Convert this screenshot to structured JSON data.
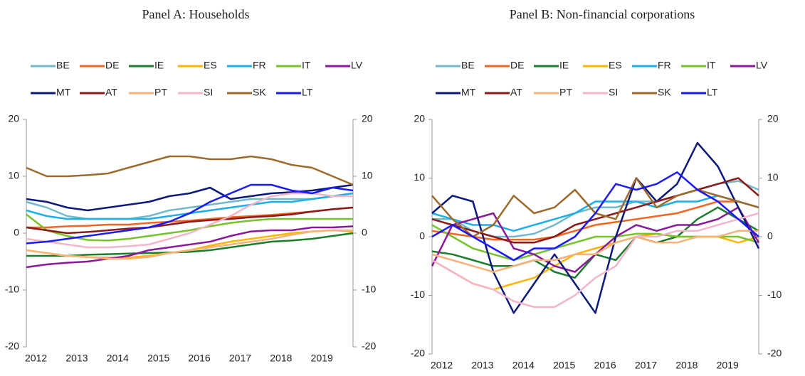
{
  "chart_data": [
    {
      "type": "line",
      "title": "Panel A: Households",
      "x": [
        2012,
        2012.5,
        2013,
        2013.5,
        2014,
        2014.5,
        2015,
        2015.5,
        2016,
        2016.5,
        2017,
        2017.5,
        2018,
        2018.5,
        2019,
        2019.5,
        2020
      ],
      "xlim": [
        2012,
        2020
      ],
      "xticks": [
        2012,
        2013,
        2014,
        2015,
        2016,
        2017,
        2018,
        2019
      ],
      "ylim": [
        -20,
        20
      ],
      "yticks": [
        -20,
        -10,
        0,
        10,
        20
      ],
      "y2lim": [
        -20,
        20
      ],
      "y2ticks": [
        -20,
        -10,
        0,
        10,
        20
      ],
      "series": [
        {
          "name": "BE",
          "color": "#72b9c9",
          "values": [
            5.5,
            4.5,
            3,
            2.5,
            2.5,
            2.5,
            3,
            4,
            4.5,
            5,
            5.5,
            6,
            6,
            6,
            6,
            6.5,
            7
          ]
        },
        {
          "name": "DE",
          "color": "#f26522",
          "values": [
            1,
            1,
            1.2,
            1.3,
            1.5,
            1.5,
            1.8,
            2,
            2.2,
            2.5,
            2.8,
            3,
            3.2,
            3.5,
            3.8,
            4.2,
            4.5
          ]
        },
        {
          "name": "IE",
          "color": "#1b7d2b",
          "values": [
            -4,
            -4,
            -4,
            -3.8,
            -3.7,
            -3.6,
            -3.5,
            -3.4,
            -3.3,
            -3,
            -2.5,
            -2,
            -1.5,
            -1.3,
            -1,
            -0.5,
            0
          ]
        },
        {
          "name": "ES",
          "color": "#ffb600",
          "values": [
            -3,
            -3.5,
            -4,
            -4.2,
            -4.3,
            -4.3,
            -4,
            -3.5,
            -3,
            -2.2,
            -1.5,
            -1,
            -0.5,
            0,
            0.3,
            0.5,
            0.3
          ]
        },
        {
          "name": "FR",
          "color": "#1eaee8",
          "values": [
            4,
            3,
            2.5,
            2.5,
            2.5,
            2.5,
            2.5,
            3,
            3.5,
            4,
            4.5,
            5,
            5.5,
            5.5,
            6,
            6.5,
            7
          ]
        },
        {
          "name": "IT",
          "color": "#76c22b",
          "values": [
            3.3,
            0.5,
            -0.5,
            -1.2,
            -1.3,
            -1,
            -0.5,
            0,
            0.5,
            1.2,
            1.8,
            2.2,
            2.5,
            2.5,
            2.5,
            2.5,
            2.5
          ]
        },
        {
          "name": "LV",
          "color": "#8b1a9b",
          "values": [
            -6,
            -5.5,
            -5.2,
            -5,
            -4.5,
            -4,
            -3,
            -2.5,
            -2,
            -1.5,
            -0.5,
            0.3,
            0.5,
            0.5,
            1,
            1,
            1.2
          ]
        },
        {
          "name": "MT",
          "color": "#0b1a7a",
          "values": [
            6,
            5.5,
            4.5,
            4,
            4.5,
            5,
            5.5,
            6.5,
            7,
            8,
            6,
            6.5,
            7,
            7.2,
            7.5,
            8,
            8.5
          ]
        },
        {
          "name": "AT",
          "color": "#8b1a1a",
          "values": [
            1,
            0.5,
            0,
            0.2,
            0.5,
            0.8,
            1,
            1.5,
            2,
            2.3,
            2.5,
            2.8,
            3,
            3.3,
            3.8,
            4.2,
            4.5
          ]
        },
        {
          "name": "PT",
          "color": "#f7b27a",
          "values": [
            -3,
            -3.5,
            -4,
            -4.2,
            -4.5,
            -4.5,
            -4.2,
            -3.5,
            -3,
            -2.5,
            -2,
            -1.5,
            -1,
            -0.3,
            0.3,
            0.5,
            0.5
          ]
        },
        {
          "name": "SI",
          "color": "#f5b5c9",
          "values": [
            -1,
            -1.5,
            -2,
            -2.5,
            -2.5,
            -2.3,
            -2,
            -1,
            0,
            1.5,
            3,
            5,
            6.5,
            7,
            7,
            6.5,
            6.5
          ]
        },
        {
          "name": "SK",
          "color": "#9c6a2a",
          "values": [
            11.5,
            10,
            10,
            10.2,
            10.5,
            11.5,
            12.5,
            13.5,
            13.5,
            13,
            13,
            13.5,
            13,
            12,
            11.5,
            10,
            8.5
          ]
        },
        {
          "name": "LT",
          "color": "#1a1aff",
          "values": [
            -1.8,
            -1.5,
            -1,
            -0.5,
            0,
            0.5,
            1,
            2,
            3.5,
            5.5,
            7,
            8.5,
            8.5,
            7.5,
            7,
            8,
            7.5
          ]
        }
      ]
    },
    {
      "type": "line",
      "title": "Panel B: Non-financial corporations",
      "x": [
        2012,
        2012.5,
        2013,
        2013.5,
        2014,
        2014.5,
        2015,
        2015.5,
        2016,
        2016.5,
        2017,
        2017.5,
        2018,
        2018.5,
        2019,
        2019.5,
        2020
      ],
      "xlim": [
        2012,
        2020
      ],
      "xticks": [
        2012,
        2013,
        2014,
        2015,
        2016,
        2017,
        2018,
        2019
      ],
      "ylim": [
        -20,
        20
      ],
      "yticks": [
        -20,
        -10,
        0,
        10,
        20
      ],
      "y2lim": [
        -20,
        20
      ],
      "y2ticks": [
        -20,
        -10,
        0,
        10,
        20
      ],
      "series": [
        {
          "name": "BE",
          "color": "#72b9c9",
          "values": [
            3,
            3,
            1,
            0,
            0,
            0.5,
            2,
            4,
            5,
            5,
            6,
            6,
            7,
            8,
            9,
            9.5,
            8
          ]
        },
        {
          "name": "DE",
          "color": "#f26522",
          "values": [
            1,
            0.5,
            0,
            -0.5,
            -0.5,
            -0.5,
            0,
            1,
            2,
            2.5,
            3,
            3.5,
            4,
            5,
            6,
            6,
            5
          ]
        },
        {
          "name": "IE",
          "color": "#1b7d2b",
          "values": [
            -2.5,
            -3,
            -4,
            -5,
            -5,
            -4,
            -6,
            -7,
            -3,
            -4,
            0,
            -1,
            0,
            3,
            5,
            3,
            1
          ]
        },
        {
          "name": "ES",
          "color": "#ffb600",
          "values": [
            -4,
            -6,
            -8,
            -9,
            -8,
            -7,
            -5,
            -3,
            -2,
            -1,
            0,
            0.5,
            0,
            0,
            0,
            -1,
            0
          ]
        },
        {
          "name": "FR",
          "color": "#1eaee8",
          "values": [
            4,
            3,
            2,
            2,
            1,
            2,
            3,
            4,
            6,
            6,
            6,
            5,
            6,
            6,
            7,
            6,
            5
          ]
        },
        {
          "name": "IT",
          "color": "#76c22b",
          "values": [
            2,
            0,
            -2,
            -3,
            -4,
            -3,
            -2,
            -1,
            0,
            0,
            0.5,
            0.5,
            0,
            0,
            0,
            0,
            -1
          ]
        },
        {
          "name": "LV",
          "color": "#8b1a9b",
          "values": [
            -5,
            2,
            3,
            4,
            -2,
            -3,
            -5,
            -6,
            -3,
            0,
            2,
            1,
            2,
            2,
            3,
            5,
            -1
          ]
        },
        {
          "name": "MT",
          "color": "#0b1a7a",
          "values": [
            4,
            7,
            6,
            -6,
            -13,
            -8,
            -3,
            -8,
            -13,
            0,
            10,
            6,
            9,
            16,
            12,
            5,
            -2
          ]
        },
        {
          "name": "AT",
          "color": "#8b1a1a",
          "values": [
            3,
            2,
            1,
            0,
            -1,
            -1,
            0,
            2,
            3,
            4,
            5,
            6,
            7,
            8,
            9,
            10,
            7
          ]
        },
        {
          "name": "PT",
          "color": "#f7b27a",
          "values": [
            -3,
            -4,
            -5,
            -6,
            -5,
            -4,
            -4,
            -3,
            -3,
            -1,
            0,
            -1,
            -1,
            0,
            0,
            1,
            1
          ]
        },
        {
          "name": "SI",
          "color": "#f5b5c9",
          "values": [
            -4,
            -6,
            -8,
            -9,
            -11,
            -12,
            -12,
            -10,
            -7,
            -5,
            0,
            0,
            1,
            1,
            2,
            3,
            4
          ]
        },
        {
          "name": "SK",
          "color": "#9c6a2a",
          "values": [
            7,
            3,
            0,
            2,
            7,
            4,
            5,
            8,
            4,
            3,
            10,
            5,
            7,
            8,
            7,
            6,
            5
          ]
        },
        {
          "name": "LT",
          "color": "#1a1aff",
          "values": [
            0,
            2,
            0,
            -2,
            -4,
            -2,
            -2,
            0,
            4,
            9,
            8,
            9,
            11,
            8,
            6,
            3,
            0
          ]
        }
      ]
    }
  ]
}
